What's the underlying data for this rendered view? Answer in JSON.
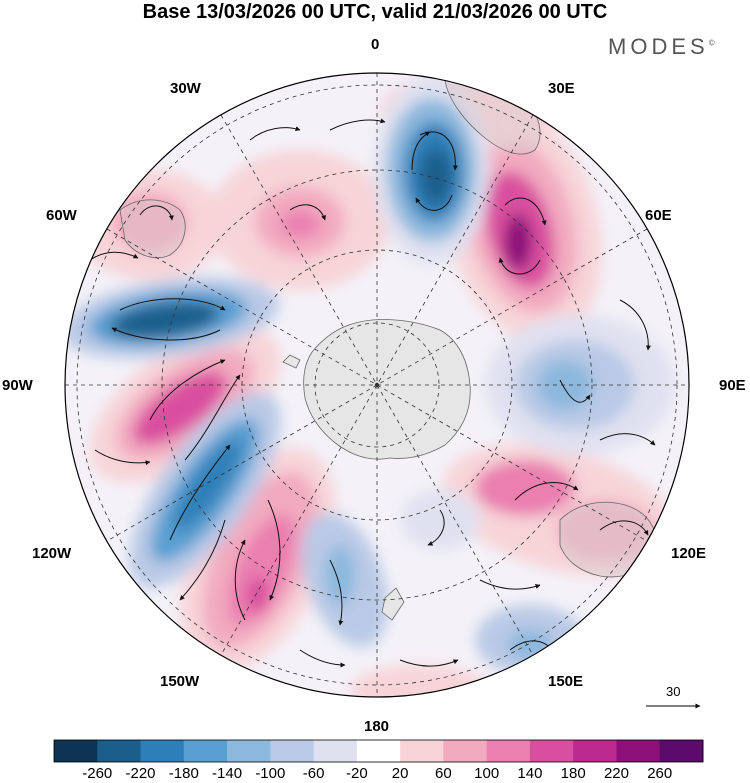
{
  "title": "Base 13/03/2026 00 UTC, valid 21/03/2026 00 UTC",
  "logo": "MODES",
  "logo_mark": "©",
  "longitude_labels": {
    "top": "0",
    "e30": "30E",
    "e60": "60E",
    "e90": "90E",
    "e120": "120E",
    "e150": "150E",
    "bottom": "180",
    "w150": "150W",
    "w120": "120W",
    "w90": "90W",
    "w60": "60W",
    "w30": "30W"
  },
  "vector_reference": {
    "label": "30"
  },
  "colorbar": {
    "labels": [
      "-260",
      "-220",
      "-180",
      "-140",
      "-100",
      "-60",
      "-20",
      "20",
      "60",
      "100",
      "140",
      "180",
      "220",
      "260"
    ],
    "colors": [
      "#0b3552",
      "#1a5e8c",
      "#2e7fb8",
      "#5a9fd1",
      "#8cb8dd",
      "#b9c9e6",
      "#e0e1f0",
      "#ffffff",
      "#f7d4d8",
      "#f2aac0",
      "#ea7fb0",
      "#d94f9f",
      "#bc2a8f",
      "#8c1078",
      "#5a0b6b"
    ]
  },
  "colors": {
    "land": "#e6e6e6",
    "coast": "#666666",
    "grid": "#333333",
    "arrow": "#111111"
  }
}
